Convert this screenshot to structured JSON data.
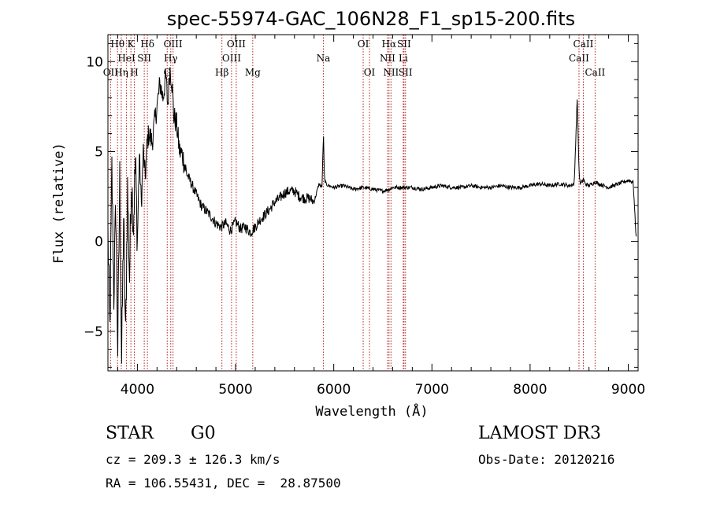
{
  "chart_data": {
    "type": "line",
    "title": "spec-55974-GAC_106N28_F1_sp15-200.fits",
    "xlabel": "Wavelength (Å)",
    "ylabel": "Flux (relative)",
    "xlim": [
      3700,
      9100
    ],
    "ylim": [
      -7.2,
      11.5
    ],
    "xticks": [
      4000,
      5000,
      6000,
      7000,
      8000,
      9000
    ],
    "xtick_labels": [
      "4000",
      "5000",
      "6000",
      "7000",
      "8000",
      "9000"
    ],
    "yticks": [
      -5,
      0,
      5,
      10
    ],
    "ytick_labels": [
      "−5",
      "0",
      "5",
      "10"
    ],
    "spectrum": {
      "x": [
        3700,
        3720,
        3740,
        3760,
        3780,
        3800,
        3820,
        3840,
        3860,
        3880,
        3900,
        3920,
        3940,
        3960,
        3980,
        4000,
        4020,
        4040,
        4060,
        4080,
        4100,
        4120,
        4150,
        4180,
        4200,
        4230,
        4260,
        4290,
        4310,
        4330,
        4350,
        4370,
        4400,
        4430,
        4460,
        4500,
        4550,
        4600,
        4650,
        4700,
        4750,
        4800,
        4850,
        4900,
        4950,
        5000,
        5050,
        5100,
        5150,
        5200,
        5250,
        5300,
        5350,
        5400,
        5450,
        5500,
        5550,
        5600,
        5650,
        5700,
        5750,
        5800,
        5850,
        5880,
        5895,
        5905,
        5920,
        5950,
        6000,
        6100,
        6200,
        6300,
        6400,
        6500,
        6563,
        6600,
        6700,
        6800,
        6900,
        7000,
        7100,
        7200,
        7300,
        7400,
        7500,
        7600,
        7700,
        7800,
        7900,
        8000,
        8100,
        8200,
        8300,
        8400,
        8450,
        8480,
        8498,
        8510,
        8530,
        8542,
        8560,
        8600,
        8662,
        8700,
        8800,
        8900,
        9000,
        9050,
        9080
      ],
      "y": [
        0.5,
        -5.0,
        4.0,
        -3.0,
        2.0,
        -6.0,
        3.5,
        -6.8,
        1.5,
        -5.5,
        3.0,
        -2.0,
        3.5,
        1.0,
        4.5,
        0.0,
        4.8,
        2.0,
        5.0,
        3.5,
        5.6,
        6.0,
        5.5,
        6.8,
        7.5,
        8.8,
        8.0,
        9.2,
        7.5,
        9.6,
        9.0,
        7.0,
        6.5,
        5.0,
        4.8,
        3.8,
        3.2,
        2.6,
        2.0,
        1.7,
        1.4,
        1.0,
        0.8,
        1.0,
        0.6,
        1.1,
        0.7,
        0.8,
        0.5,
        0.8,
        1.2,
        1.5,
        1.8,
        2.2,
        2.4,
        2.7,
        2.8,
        2.8,
        2.5,
        2.4,
        2.4,
        2.2,
        3.2,
        3.0,
        6.0,
        3.5,
        3.2,
        3.1,
        3.0,
        3.1,
        2.9,
        3.0,
        2.9,
        2.8,
        2.9,
        3.0,
        3.0,
        3.0,
        2.9,
        3.0,
        3.1,
        3.0,
        3.0,
        3.1,
        3.0,
        3.0,
        3.1,
        3.0,
        3.0,
        3.1,
        3.2,
        3.1,
        3.2,
        3.1,
        3.2,
        8.0,
        4.0,
        3.2,
        3.3,
        3.5,
        3.2,
        3.1,
        3.3,
        3.2,
        3.0,
        3.2,
        3.4,
        3.3,
        0.2
      ]
    },
    "lines": [
      {
        "label": "Hθ",
        "x": 3798,
        "row": 0
      },
      {
        "label": "OII",
        "x": 3727,
        "row": 2
      },
      {
        "label": "Hη",
        "x": 3836,
        "row": 2
      },
      {
        "label": "HeI",
        "x": 3889,
        "row": 1
      },
      {
        "label": "K",
        "x": 3934,
        "row": 0
      },
      {
        "label": "H",
        "x": 3969,
        "row": 2
      },
      {
        "label": "SII",
        "x": 4070,
        "row": 1
      },
      {
        "label": "Hδ",
        "x": 4102,
        "row": 0
      },
      {
        "label": "G",
        "x": 4304,
        "row": 2
      },
      {
        "label": "Hγ",
        "x": 4340,
        "row": 1
      },
      {
        "label": "OIII",
        "x": 4363,
        "row": 0
      },
      {
        "label": "Hβ",
        "x": 4861,
        "row": 2
      },
      {
        "label": "OIII",
        "x": 4959,
        "row": 1
      },
      {
        "label": "OIII",
        "x": 5007,
        "row": 0
      },
      {
        "label": "Mg",
        "x": 5175,
        "row": 2
      },
      {
        "label": "Na",
        "x": 5894,
        "row": 1
      },
      {
        "label": "OI",
        "x": 6300,
        "row": 0
      },
      {
        "label": "OI",
        "x": 6364,
        "row": 2
      },
      {
        "label": "NII",
        "x": 6548,
        "row": 1
      },
      {
        "label": "Hα",
        "x": 6563,
        "row": 0
      },
      {
        "label": "NII",
        "x": 6583,
        "row": 2
      },
      {
        "label": "Li",
        "x": 6708,
        "row": 1
      },
      {
        "label": "SII",
        "x": 6716,
        "row": 0
      },
      {
        "label": "SII",
        "x": 6731,
        "row": 2
      },
      {
        "label": "CaII",
        "x": 8498,
        "row": 1
      },
      {
        "label": "CaII",
        "x": 8542,
        "row": 0
      },
      {
        "label": "CaII",
        "x": 8662,
        "row": 2
      }
    ]
  },
  "info": {
    "class": "STAR",
    "subclass": "G0",
    "survey": "LAMOST DR3",
    "cz": "cz = 209.3 ± 126.3 km/s",
    "obsdate": "Obs-Date: 20120216",
    "radec": "RA = 106.55431, DEC =  28.87500"
  },
  "colors": {
    "axis": "#000000",
    "spectrum": "#000000",
    "marker": "#b22222"
  }
}
